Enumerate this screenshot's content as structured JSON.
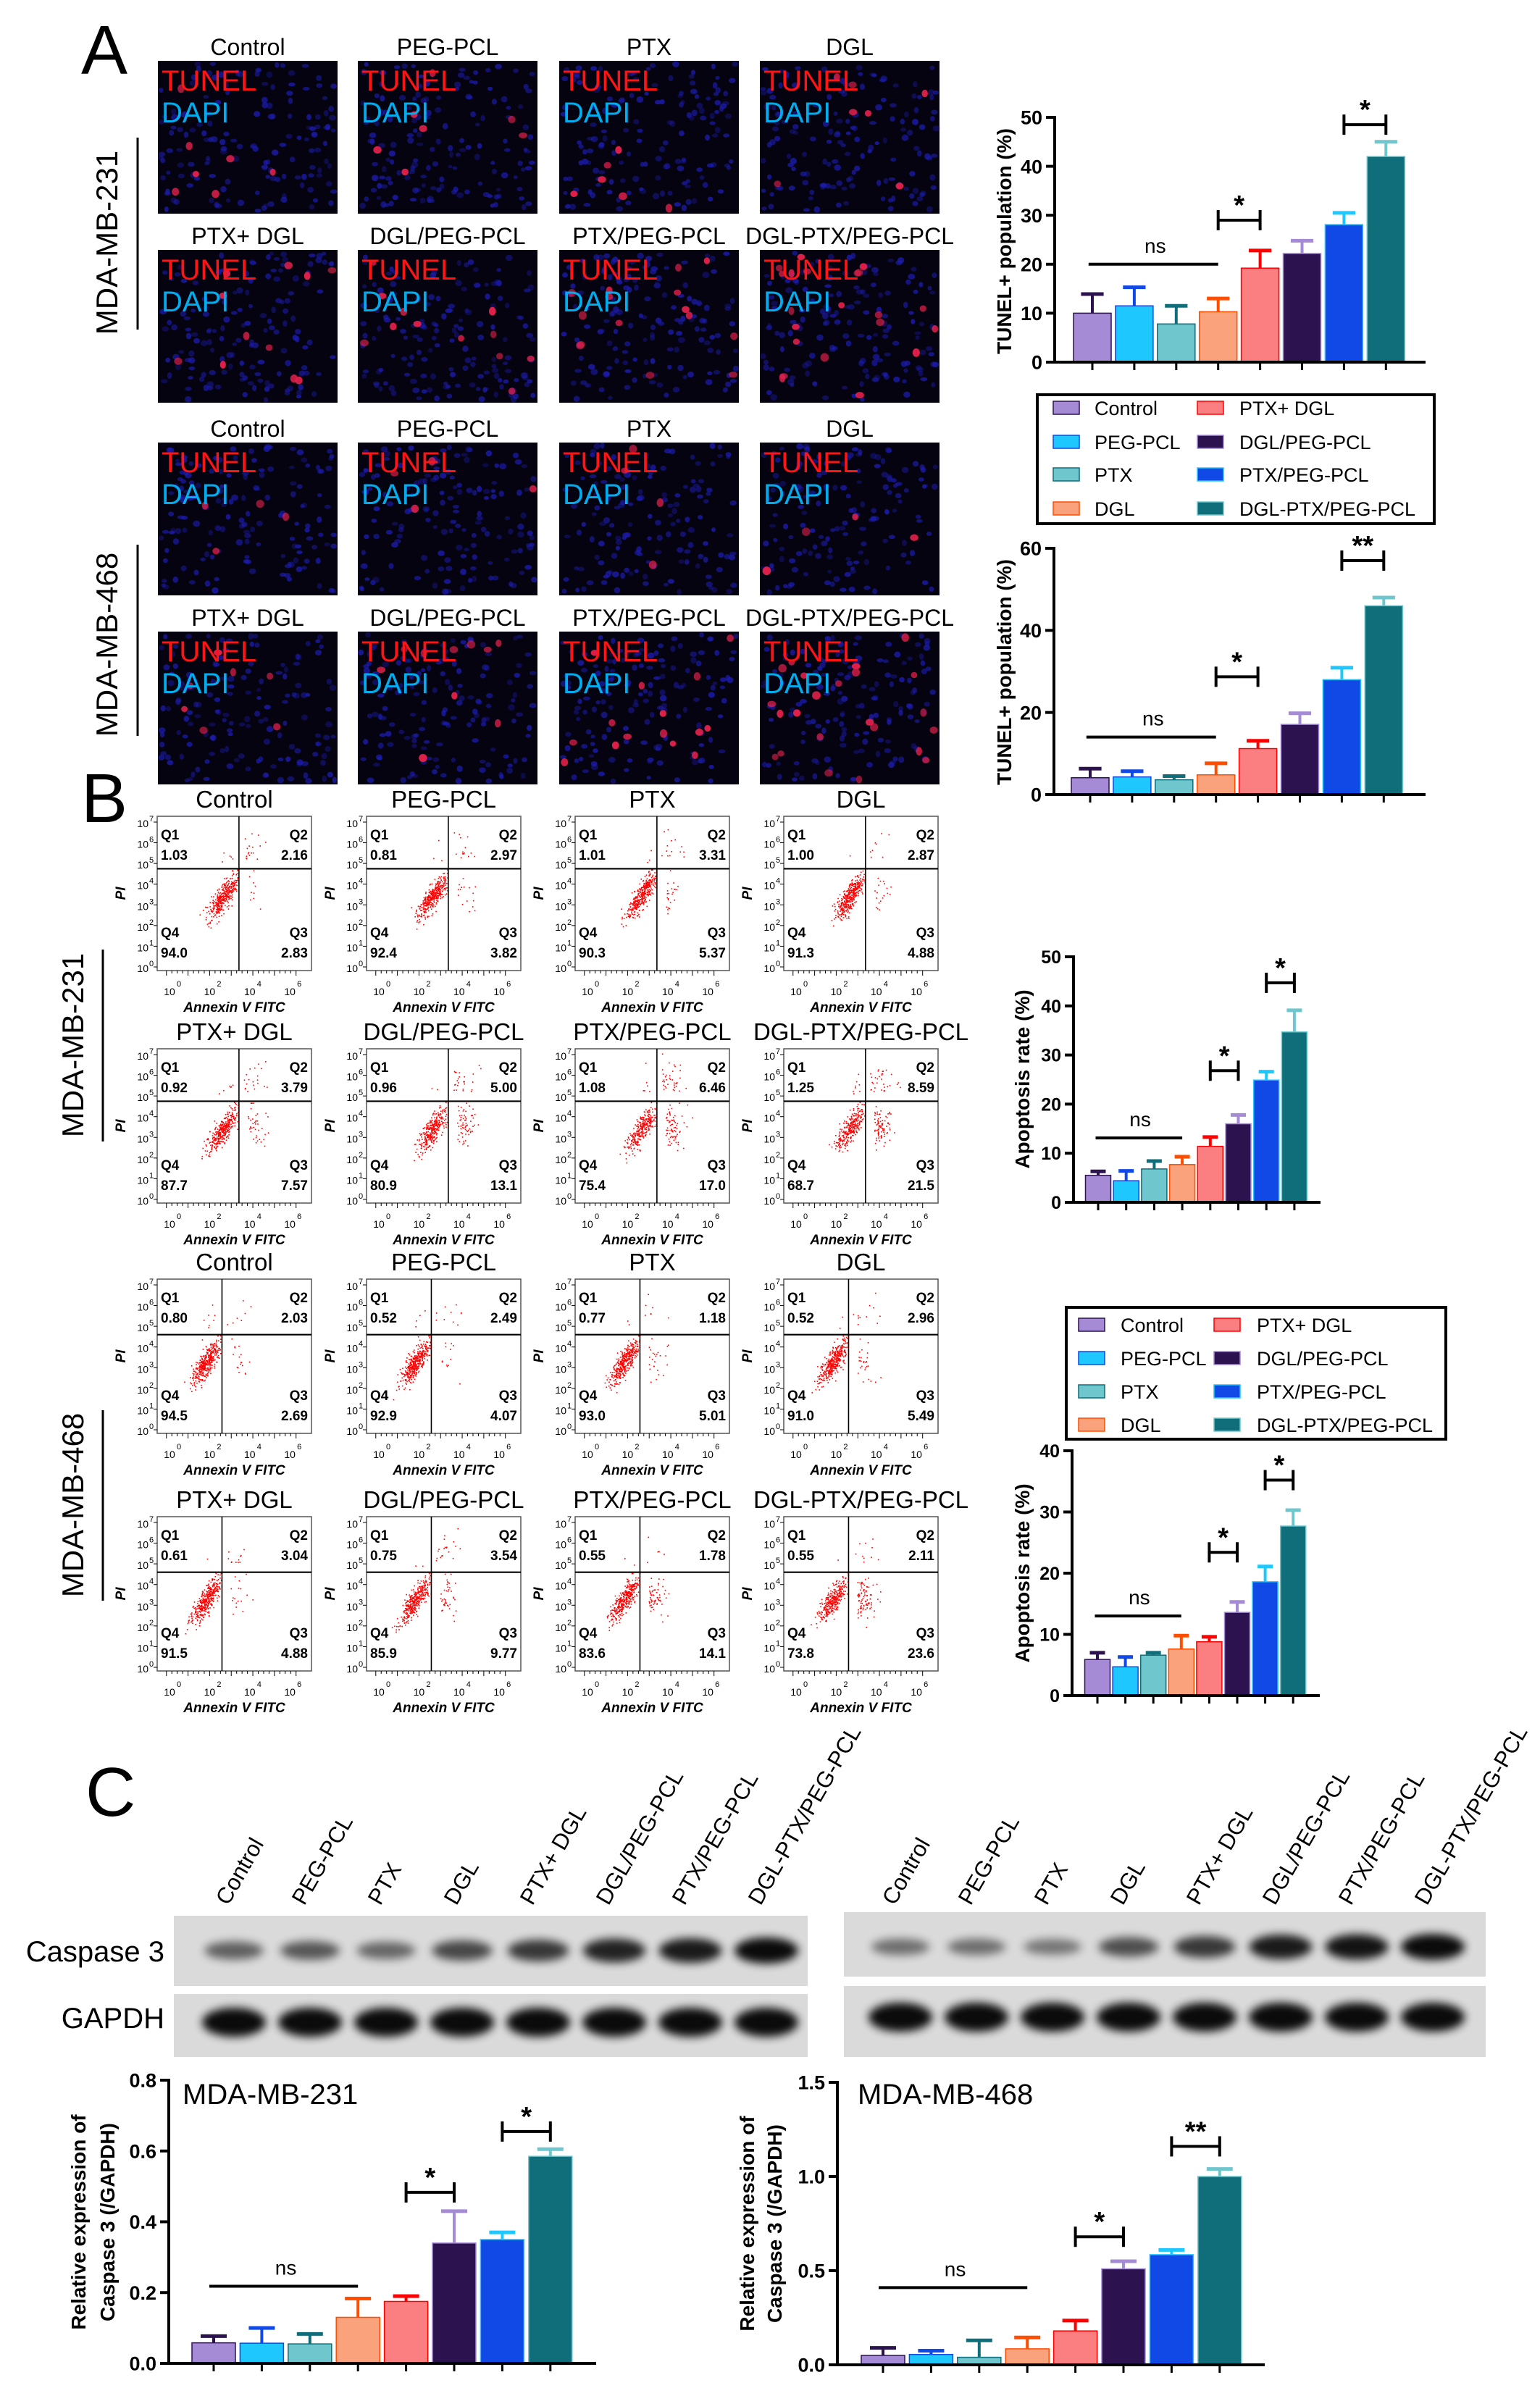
{
  "panels": {
    "A": "A",
    "B": "B",
    "C": "C"
  },
  "groups": [
    "Control",
    "PEG-PCL",
    "PTX",
    "DGL",
    "PTX+ DGL",
    "DGL/PEG-PCL",
    "PTX/PEG-PCL",
    "DGL-PTX/PEG-PCL"
  ],
  "cell_lines": [
    "MDA-MB-231",
    "MDA-MB-468"
  ],
  "colors": {
    "bar_fill": [
      "#a58bd6",
      "#1ec8fe",
      "#6fc6cd",
      "#f9a27c",
      "#fb7f80",
      "#2d1250",
      "#1149e6",
      "#0f6e79"
    ],
    "error_bar": [
      "#2d1250",
      "#1149e6",
      "#0f6e79",
      "#ff4e00",
      "#ff0000",
      "#a58bd6",
      "#1ec8fe",
      "#6fc6cd"
    ],
    "tunel_label": "#ff1414",
    "dapi_label": "#00aeef",
    "flow_dots": "#ff0000"
  },
  "tunel_images": {
    "stain_labels": [
      "TUNEL",
      "DAPI"
    ]
  },
  "flow": {
    "x_label": "Annexin V FITC",
    "y_label": "PI",
    "tick_base": "10",
    "y_ticks": [
      "0",
      "1",
      "2",
      "3",
      "4",
      "5",
      "6",
      "7"
    ],
    "x_ticks": [
      "0",
      "2",
      "4",
      "6"
    ],
    "quadrant_names": [
      "Q1",
      "Q2",
      "Q3",
      "Q4"
    ],
    "plots": [
      {
        "cell_line": 0,
        "group": 0,
        "q1": "1.03",
        "q2": "2.16",
        "q3": "2.83",
        "q4": "94.0"
      },
      {
        "cell_line": 0,
        "group": 1,
        "q1": "0.81",
        "q2": "2.97",
        "q3": "3.82",
        "q4": "92.4"
      },
      {
        "cell_line": 0,
        "group": 2,
        "q1": "1.01",
        "q2": "3.31",
        "q3": "5.37",
        "q4": "90.3"
      },
      {
        "cell_line": 0,
        "group": 3,
        "q1": "1.00",
        "q2": "2.87",
        "q3": "4.88",
        "q4": "91.3"
      },
      {
        "cell_line": 0,
        "group": 4,
        "q1": "0.92",
        "q2": "3.79",
        "q3": "7.57",
        "q4": "87.7"
      },
      {
        "cell_line": 0,
        "group": 5,
        "q1": "0.96",
        "q2": "5.00",
        "q3": "13.1",
        "q4": "80.9"
      },
      {
        "cell_line": 0,
        "group": 6,
        "q1": "1.08",
        "q2": "6.46",
        "q3": "17.0",
        "q4": "75.4"
      },
      {
        "cell_line": 0,
        "group": 7,
        "q1": "1.25",
        "q2": "8.59",
        "q3": "21.5",
        "q4": "68.7"
      },
      {
        "cell_line": 1,
        "group": 0,
        "q1": "0.80",
        "q2": "2.03",
        "q3": "2.69",
        "q4": "94.5"
      },
      {
        "cell_line": 1,
        "group": 1,
        "q1": "0.52",
        "q2": "2.49",
        "q3": "4.07",
        "q4": "92.9"
      },
      {
        "cell_line": 1,
        "group": 2,
        "q1": "0.77",
        "q2": "1.18",
        "q3": "5.01",
        "q4": "93.0"
      },
      {
        "cell_line": 1,
        "group": 3,
        "q1": "0.52",
        "q2": "2.96",
        "q3": "5.49",
        "q4": "91.0"
      },
      {
        "cell_line": 1,
        "group": 4,
        "q1": "0.61",
        "q2": "3.04",
        "q3": "4.88",
        "q4": "91.5"
      },
      {
        "cell_line": 1,
        "group": 5,
        "q1": "0.75",
        "q2": "3.54",
        "q3": "9.77",
        "q4": "85.9"
      },
      {
        "cell_line": 1,
        "group": 6,
        "q1": "0.55",
        "q2": "1.78",
        "q3": "14.1",
        "q4": "83.6"
      },
      {
        "cell_line": 1,
        "group": 7,
        "q1": "0.55",
        "q2": "2.11",
        "q3": "23.6",
        "q4": "73.8"
      }
    ]
  },
  "blot": {
    "row_labels": [
      "Caspase 3",
      "GAPDH"
    ],
    "caspase3_band_intensity": [
      [
        0.45,
        0.5,
        0.4,
        0.6,
        0.7,
        0.85,
        0.9,
        1.0
      ],
      [
        0.35,
        0.35,
        0.3,
        0.55,
        0.7,
        0.9,
        0.95,
        1.0
      ]
    ]
  },
  "chart_data": [
    {
      "type": "bar",
      "cell_line": 0,
      "ylabel": "TUNEL+ population (%)",
      "ylim": [
        0,
        50
      ],
      "yticks": [
        "0",
        "10",
        "20",
        "30",
        "40",
        "50"
      ],
      "categories": [
        "Control",
        "PEG-PCL",
        "PTX",
        "DGL",
        "PTX+ DGL",
        "DGL/PEG-PCL",
        "PTX/PEG-PCL",
        "DGL-PTX/PEG-PCL"
      ],
      "values": [
        10,
        11.5,
        7.8,
        10.3,
        19.2,
        22.2,
        28.1,
        42
      ],
      "errors": [
        3.9,
        3.8,
        3.7,
        2.7,
        3.6,
        2.6,
        2.4,
        3.0
      ],
      "significance": [
        {
          "from": 0,
          "to": 3,
          "y": 20,
          "label": "ns",
          "style": "line"
        },
        {
          "from": 3,
          "to": 4,
          "y": 29,
          "label": "*",
          "style": "bracket"
        },
        {
          "from": 6,
          "to": 7,
          "y": 48.5,
          "label": "*",
          "style": "bracket"
        }
      ],
      "legend": "below",
      "grid": false
    },
    {
      "type": "bar",
      "cell_line": 1,
      "ylabel": "TUNEL+ population (%)",
      "ylim": [
        0,
        60
      ],
      "yticks": [
        "0",
        "20",
        "40",
        "60"
      ],
      "categories": [
        "Control",
        "PEG-PCL",
        "PTX",
        "DGL",
        "PTX+ DGL",
        "DGL/PEG-PCL",
        "PTX/PEG-PCL",
        "DGL-PTX/PEG-PCL"
      ],
      "values": [
        4.1,
        4.3,
        3.6,
        4.8,
        11.2,
        17.1,
        28,
        46
      ],
      "errors": [
        2.2,
        1.4,
        0.9,
        2.8,
        1.9,
        2.7,
        2.9,
        2.0
      ],
      "significance": [
        {
          "from": 0,
          "to": 3,
          "y": 14,
          "label": "ns",
          "style": "line"
        },
        {
          "from": 3,
          "to": 4,
          "y": 28.7,
          "label": "*",
          "style": "bracket"
        },
        {
          "from": 6,
          "to": 7,
          "y": 57,
          "label": "**",
          "style": "bracket"
        }
      ],
      "legend": "above",
      "grid": false
    },
    {
      "type": "bar",
      "cell_line": 0,
      "ylabel": "Apoptosis rate (%)",
      "ylim": [
        0,
        50
      ],
      "yticks": [
        "0",
        "10",
        "20",
        "30",
        "40",
        "50"
      ],
      "categories": [
        "Control",
        "PEG-PCL",
        "PTX",
        "DGL",
        "PTX+ DGL",
        "DGL/PEG-PCL",
        "PTX/PEG-PCL",
        "DGL-PTX/PEG-PCL"
      ],
      "values": [
        5.5,
        4.4,
        6.8,
        7.7,
        11.4,
        16,
        24.9,
        34.7
      ],
      "errors": [
        0.8,
        2.0,
        1.6,
        1.6,
        1.9,
        1.8,
        1.7,
        4.4
      ],
      "significance": [
        {
          "from": 0,
          "to": 3,
          "y": 13.1,
          "label": "ns",
          "style": "line"
        },
        {
          "from": 4,
          "to": 5,
          "y": 26.8,
          "label": "*",
          "style": "bracket"
        },
        {
          "from": 6,
          "to": 7,
          "y": 44.7,
          "label": "*",
          "style": "bracket"
        }
      ],
      "legend": "below",
      "grid": false
    },
    {
      "type": "bar",
      "cell_line": 1,
      "ylabel": "Apoptosis rate (%)",
      "ylim": [
        0,
        40
      ],
      "yticks": [
        "0",
        "10",
        "20",
        "30",
        "40"
      ],
      "categories": [
        "Control",
        "PEG-PCL",
        "PTX",
        "DGL",
        "PTX+ DGL",
        "DGL/PEG-PCL",
        "PTX/PEG-PCL",
        "DGL-PTX/PEG-PCL"
      ],
      "values": [
        5.9,
        4.7,
        6.6,
        7.6,
        8.8,
        13.6,
        18.6,
        27.7
      ],
      "errors": [
        1.1,
        1.6,
        0.4,
        2.2,
        0.8,
        1.7,
        2.5,
        2.6
      ],
      "significance": [
        {
          "from": 0,
          "to": 3,
          "y": 13,
          "label": "ns",
          "style": "line"
        },
        {
          "from": 4,
          "to": 5,
          "y": 23.4,
          "label": "*",
          "style": "bracket"
        },
        {
          "from": 6,
          "to": 7,
          "y": 35.2,
          "label": "*",
          "style": "bracket"
        }
      ],
      "legend": "above",
      "grid": false
    },
    {
      "type": "bar",
      "cell_line": 0,
      "title": "MDA-MB-231",
      "ylabel": [
        "Relative expression of",
        "Caspase 3 (/GAPDH)"
      ],
      "ylim": [
        0,
        0.8
      ],
      "yticks": [
        "0.0",
        "0.2",
        "0.4",
        "0.6",
        "0.8"
      ],
      "categories": [
        "Control",
        "PEG-PCL",
        "PTX",
        "DGL",
        "PTX+ DGL",
        "DGL/PEG-PCL",
        "PTX/PEG-PCL",
        "DGL-PTX/PEG-PCL"
      ],
      "values": [
        0.058,
        0.057,
        0.055,
        0.13,
        0.175,
        0.34,
        0.35,
        0.585
      ],
      "errors": [
        0.019,
        0.043,
        0.028,
        0.053,
        0.015,
        0.09,
        0.02,
        0.02
      ],
      "significance": [
        {
          "from": 0,
          "to": 3,
          "y": 0.218,
          "label": "ns",
          "style": "line"
        },
        {
          "from": 4,
          "to": 5,
          "y": 0.483,
          "label": "*",
          "style": "bracket"
        },
        {
          "from": 6,
          "to": 7,
          "y": 0.655,
          "label": "*",
          "style": "bracket"
        }
      ],
      "grid": false
    },
    {
      "type": "bar",
      "cell_line": 1,
      "title": "MDA-MB-468",
      "ylabel": [
        "Relative expression of",
        "Caspase 3 (/GAPDH)"
      ],
      "ylim": [
        0,
        1.5
      ],
      "yticks": [
        "0.0",
        "0.5",
        "1.0",
        "1.5"
      ],
      "categories": [
        "Control",
        "PEG-PCL",
        "PTX",
        "DGL",
        "PTX+ DGL",
        "DGL/PEG-PCL",
        "PTX/PEG-PCL",
        "DGL-PTX/PEG-PCL"
      ],
      "values": [
        0.05,
        0.055,
        0.04,
        0.085,
        0.18,
        0.51,
        0.585,
        1.0
      ],
      "errors": [
        0.04,
        0.02,
        0.09,
        0.06,
        0.055,
        0.04,
        0.025,
        0.04
      ],
      "significance": [
        {
          "from": 0,
          "to": 3,
          "y": 0.41,
          "label": "ns",
          "style": "line"
        },
        {
          "from": 4,
          "to": 5,
          "y": 0.68,
          "label": "*",
          "style": "bracket"
        },
        {
          "from": 6,
          "to": 7,
          "y": 1.16,
          "label": "**",
          "style": "bracket"
        }
      ],
      "grid": false
    }
  ]
}
